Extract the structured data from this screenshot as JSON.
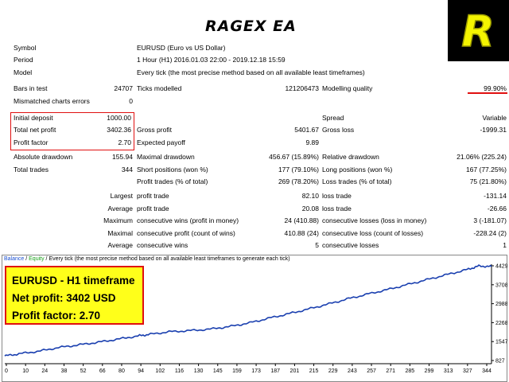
{
  "header": {
    "title": "RAGEX EA",
    "logo_letter": "R"
  },
  "report": {
    "symbol_label": "Symbol",
    "symbol_value": "EURUSD (Euro vs US Dollar)",
    "period_label": "Period",
    "period_value": "1 Hour (H1) 2016.01.03 22:00 - 2019.12.18 15:59",
    "model_label": "Model",
    "model_value": "Every tick (the most precise method based on all available least timeframes)",
    "bars_label": "Bars in test",
    "bars_value": "24707",
    "ticks_label": "Ticks modelled",
    "ticks_value": "121206473",
    "quality_label": "Modelling quality",
    "quality_value": "99.90%",
    "mismatch_label": "Mismatched charts errors",
    "mismatch_value": "0",
    "initial_label": "Initial deposit",
    "initial_value": "1000.00",
    "spread_label": "Spread",
    "spread_value": "Variable",
    "netprofit_label": "Total net profit",
    "netprofit_value": "3402.36",
    "grossprofit_label": "Gross profit",
    "grossprofit_value": "5401.67",
    "grossloss_label": "Gross loss",
    "grossloss_value": "-1999.31",
    "pf_label": "Profit factor",
    "pf_value": "2.70",
    "expected_label": "Expected payoff",
    "expected_value": "9.89",
    "absdd_label": "Absolute drawdown",
    "absdd_value": "155.94",
    "maxdd_label": "Maximal drawdown",
    "maxdd_value": "456.67 (15.89%)",
    "reldd_label": "Relative drawdown",
    "reldd_value": "21.06% (225.24)",
    "trades_label": "Total trades",
    "trades_value": "344",
    "short_label": "Short positions (won %)",
    "short_value": "177 (79.10%)",
    "long_label": "Long positions (won %)",
    "long_value": "167 (77.25%)",
    "profittr_label": "Profit trades (% of total)",
    "profittr_value": "269 (78.20%)",
    "losstr_label": "Loss trades (% of total)",
    "losstr_value": "75 (21.80%)",
    "largest_label": "Largest",
    "largest_profit_label": "profit trade",
    "largest_profit_value": "82.10",
    "largest_loss_label": "loss trade",
    "largest_loss_value": "-131.14",
    "average_label": "Average",
    "average_profit_label": "profit trade",
    "average_profit_value": "20.08",
    "average_loss_label": "loss trade",
    "average_loss_value": "-26.66",
    "maximum_label": "Maximum",
    "max_wins_label": "consecutive wins (profit in money)",
    "max_wins_value": "24 (410.88)",
    "max_losses_label": "consecutive losses (loss in money)",
    "max_losses_value": "3 (-181.07)",
    "maximal_label": "Maximal",
    "maximal_profit_label": "consecutive profit (count of wins)",
    "maximal_profit_value": "410.88 (24)",
    "maximal_loss_label": "consecutive loss (count of losses)",
    "maximal_loss_value": "-228.24 (2)",
    "avgcons_label": "Average",
    "avgcons_wins_label": "consecutive wins",
    "avgcons_wins_value": "5",
    "avgcons_losses_label": "consecutive losses",
    "avgcons_losses_value": "1"
  },
  "chart_header": {
    "balance": "Balance",
    "sep": " / ",
    "equity": "Equity",
    "rest": " / Every tick (the most precise method based on all available least timeframes to generate each tick)"
  },
  "infobox": {
    "line1": "EURUSD - H1 timeframe",
    "line2": "Net profit: 3402 USD",
    "line3": "Profit factor: 2.70"
  },
  "colors": {
    "balance": "#1a3fb0",
    "equity": "#1aa01a",
    "highlight": "#e01010",
    "box": "#ffff1a"
  },
  "chart_data": {
    "type": "line",
    "xlabel": "",
    "ylabel": "",
    "x_ticks": [
      "0",
      "10",
      "24",
      "38",
      "52",
      "66",
      "80",
      "94",
      "102",
      "116",
      "130",
      "145",
      "159",
      "173",
      "187",
      "201",
      "215",
      "229",
      "243",
      "257",
      "271",
      "285",
      "299",
      "313",
      "327",
      "344"
    ],
    "y_ticks": [
      "4429",
      "3708",
      "2988",
      "2268",
      "1547",
      "827"
    ],
    "ylim": [
      827,
      4429
    ],
    "xlim": [
      0,
      344
    ],
    "series": [
      {
        "name": "Balance",
        "x": [
          0,
          10,
          24,
          38,
          52,
          66,
          80,
          94,
          102,
          116,
          130,
          145,
          159,
          173,
          187,
          201,
          215,
          229,
          243,
          257,
          271,
          285,
          299,
          313,
          327,
          335,
          344
        ],
        "values": [
          1000,
          1080,
          1180,
          1320,
          1420,
          1520,
          1640,
          1760,
          1820,
          1920,
          1960,
          2020,
          2120,
          2260,
          2440,
          2610,
          2790,
          2980,
          3180,
          3360,
          3530,
          3720,
          3910,
          4100,
          4290,
          4420,
          4402
        ]
      }
    ]
  }
}
